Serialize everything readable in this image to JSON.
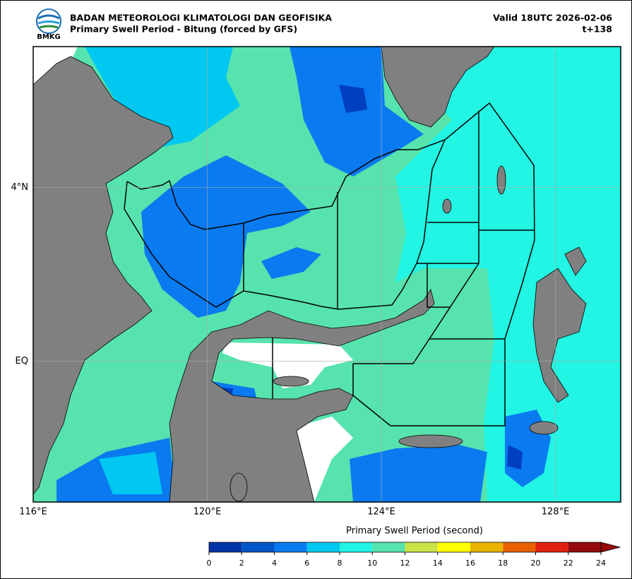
{
  "header": {
    "logo_text": "BMKG",
    "agency": "BADAN METEOROLOGI KLIMATOLOGI DAN GEOFISIKA",
    "product": "Primary Swell Period - Bitung (forced by GFS)",
    "valid": "Valid 18UTC 2026-02-06",
    "lead_time": "t+138"
  },
  "map": {
    "lonlim": [
      116,
      129.5
    ],
    "latlim": [
      -3.25,
      7.25
    ],
    "lon_ticks": [
      {
        "value": 116,
        "label": "116°E"
      },
      {
        "value": 120,
        "label": "120°E"
      },
      {
        "value": 124,
        "label": "124°E"
      },
      {
        "value": 128,
        "label": "128°E"
      }
    ],
    "lat_ticks": [
      {
        "value": 4,
        "label": "4°N"
      },
      {
        "value": 0,
        "label": "EQ"
      }
    ],
    "grid": true
  },
  "colorbar": {
    "label": "Primary Swell Period (second)",
    "ticks": [
      0,
      2,
      4,
      6,
      8,
      10,
      12,
      14,
      16,
      18,
      20,
      22,
      24
    ],
    "colors": [
      "#0033a8",
      "#0055c8",
      "#0a7af0",
      "#00c8f0",
      "#22f5e3",
      "#57e3ad",
      "#cce34a",
      "#ffff00",
      "#e8b400",
      "#e86000",
      "#e02010",
      "#960a0a"
    ],
    "extend": "max"
  }
}
